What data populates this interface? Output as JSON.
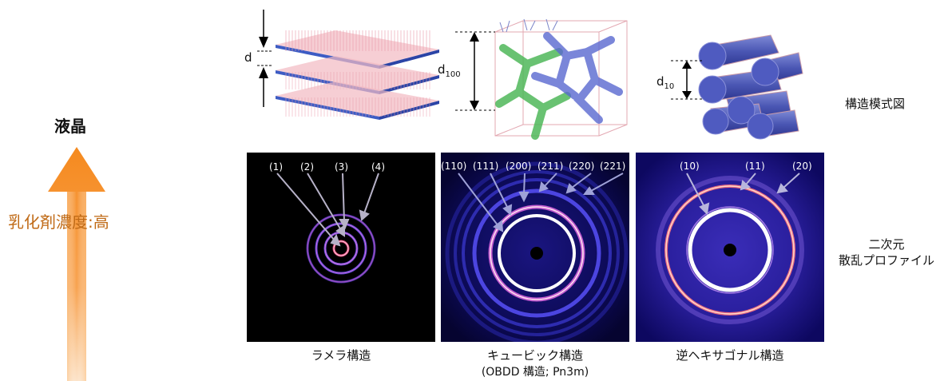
{
  "left": {
    "top_label": "液晶",
    "arrow_label": "乳化剤濃度:高",
    "arrow_color": "#f7a04a"
  },
  "row_labels": {
    "models": "構造模式図",
    "profiles_line1": "二次元",
    "profiles_line2": "散乱プロファイル"
  },
  "models": {
    "lamellar_d": "d",
    "cubic_d": "d",
    "cubic_d_sub": "100",
    "hex_d": "d",
    "hex_d_sub": "10"
  },
  "panels": [
    {
      "name": "lamellar",
      "caption": "ラメラ構造",
      "peaks": [
        "(1)",
        "(2)",
        "(3)",
        "(4)"
      ]
    },
    {
      "name": "cubic",
      "caption": "キュービック構造",
      "caption_sub": "(OBDD 構造; Pn3m)",
      "peaks": [
        "(110)",
        "(111)",
        "(200)",
        "(211)",
        "(220)",
        "(221)"
      ]
    },
    {
      "name": "hexagonal",
      "caption": "逆ヘキサゴナル構造",
      "peaks": [
        "(10)",
        "(11)",
        "(20)"
      ]
    }
  ]
}
